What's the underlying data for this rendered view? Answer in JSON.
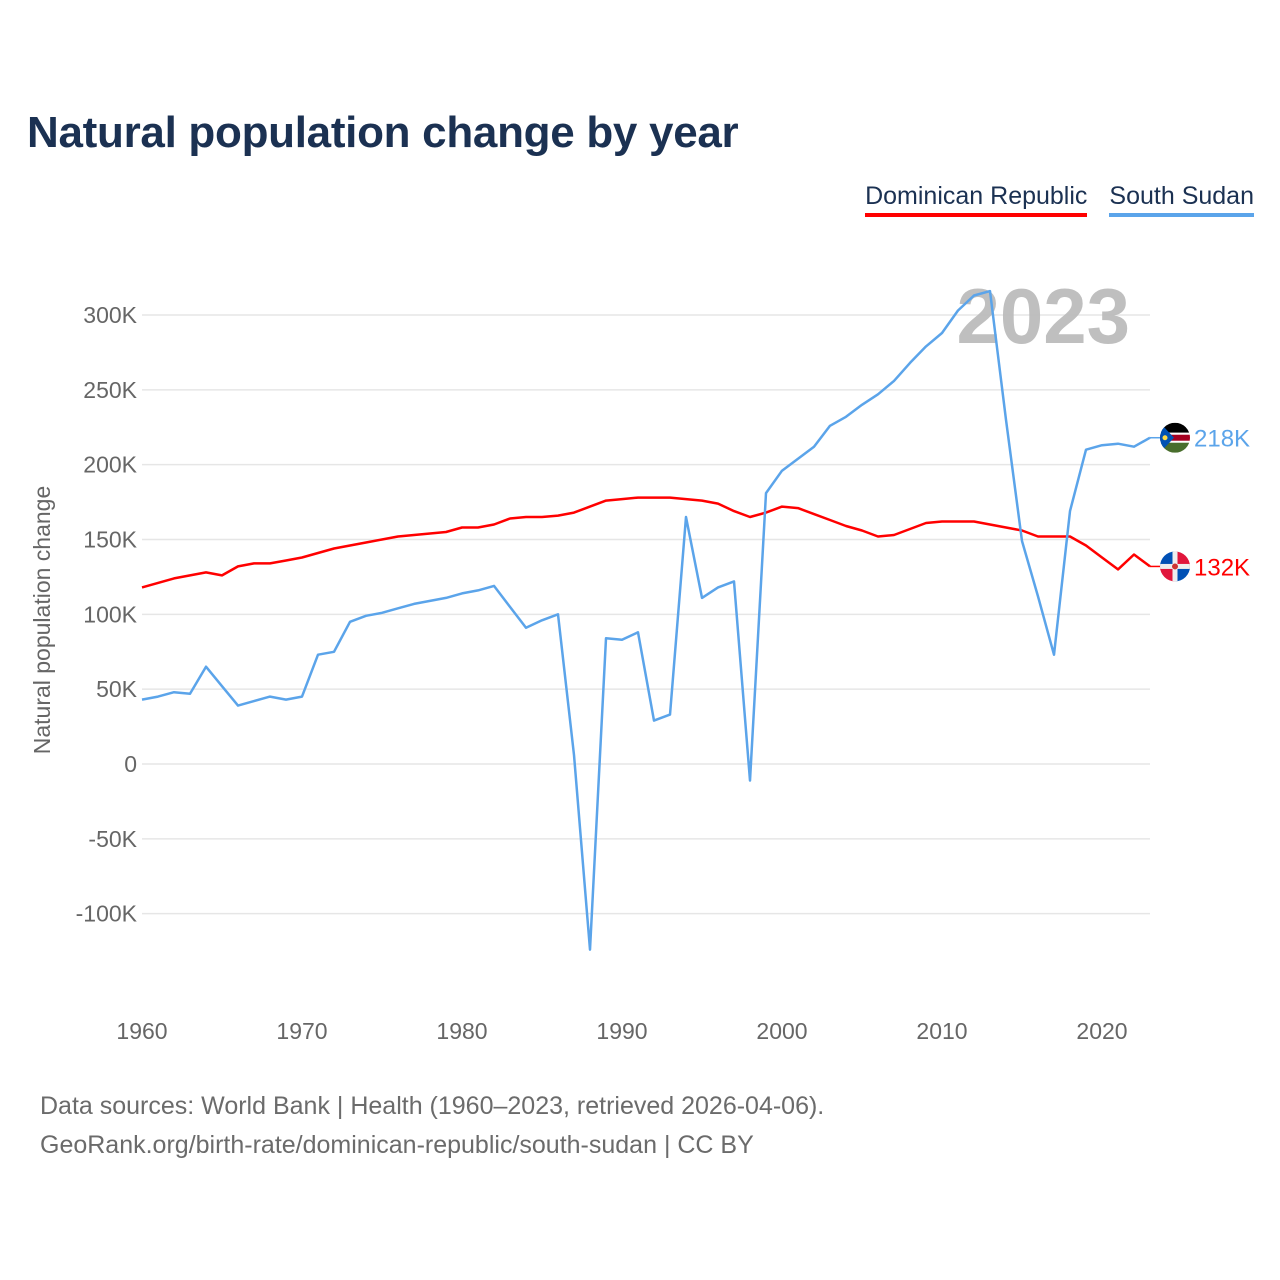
{
  "title": "Natural population change by year",
  "legend": [
    {
      "label": "Dominican Republic",
      "color": "#ff0000"
    },
    {
      "label": "South Sudan",
      "color": "#5ba4ea"
    }
  ],
  "footer": {
    "line1": "Data sources: World Bank | Health (1960–2023, retrieved 2026-04-06).",
    "line2": "GeoRank.org/birth-rate/dominican-republic/south-sudan | CC BY"
  },
  "chart_data": {
    "type": "line",
    "title": "Natural population change by year",
    "ylabel": "Natural population change",
    "xlabel": "",
    "year_watermark": "2023",
    "xlim": [
      1960,
      2023
    ],
    "ylim": [
      -125000,
      330000
    ],
    "grid": true,
    "legend_placement": "top-right",
    "x_ticks": [
      1960,
      1970,
      1980,
      1990,
      2000,
      2010,
      2020
    ],
    "x_tick_labels": [
      "1960",
      "1970",
      "1980",
      "1990",
      "2000",
      "2010",
      "2020"
    ],
    "y_ticks": [
      300000,
      250000,
      200000,
      150000,
      100000,
      50000,
      0,
      -50000,
      -100000
    ],
    "y_tick_labels": [
      "300K",
      "250K",
      "200K",
      "150K",
      "100K",
      "50K",
      "0",
      "-50K",
      "-100K"
    ],
    "x": [
      1960,
      1961,
      1962,
      1963,
      1964,
      1965,
      1966,
      1967,
      1968,
      1969,
      1970,
      1971,
      1972,
      1973,
      1974,
      1975,
      1976,
      1977,
      1978,
      1979,
      1980,
      1981,
      1982,
      1983,
      1984,
      1985,
      1986,
      1987,
      1988,
      1989,
      1990,
      1991,
      1992,
      1993,
      1994,
      1995,
      1996,
      1997,
      1998,
      1999,
      2000,
      2001,
      2002,
      2003,
      2004,
      2005,
      2006,
      2007,
      2008,
      2009,
      2010,
      2011,
      2012,
      2013,
      2014,
      2015,
      2016,
      2017,
      2018,
      2019,
      2020,
      2021,
      2022,
      2023
    ],
    "series": [
      {
        "name": "Dominican Republic",
        "color": "#ff0000",
        "end_label": "132K",
        "values": [
          118000,
          121000,
          124000,
          126000,
          128000,
          126000,
          132000,
          134000,
          134000,
          136000,
          138000,
          141000,
          144000,
          146000,
          148000,
          150000,
          152000,
          153000,
          154000,
          155000,
          158000,
          158000,
          160000,
          164000,
          165000,
          165000,
          166000,
          168000,
          172000,
          176000,
          177000,
          178000,
          178000,
          178000,
          177000,
          176000,
          174000,
          169000,
          165000,
          168000,
          172000,
          171000,
          167000,
          163000,
          159000,
          156000,
          152000,
          153000,
          157000,
          161000,
          162000,
          162000,
          162000,
          160000,
          158000,
          156000,
          152000,
          152000,
          152000,
          146000,
          138000,
          130000,
          140000,
          132000
        ]
      },
      {
        "name": "South Sudan",
        "color": "#5ba4ea",
        "end_label": "218K",
        "values": [
          43000,
          45000,
          48000,
          47000,
          65000,
          52000,
          39000,
          42000,
          45000,
          43000,
          45000,
          73000,
          75000,
          95000,
          99000,
          101000,
          104000,
          107000,
          109000,
          111000,
          114000,
          116000,
          119000,
          105000,
          91000,
          96000,
          100000,
          6000,
          -124000,
          84000,
          83000,
          88000,
          29000,
          33000,
          165000,
          111000,
          118000,
          122000,
          -11000,
          181000,
          196000,
          204000,
          212000,
          226000,
          232000,
          240000,
          247000,
          256000,
          268000,
          279000,
          288000,
          303000,
          313000,
          316000,
          230000,
          149000,
          112000,
          73000,
          169000,
          210000,
          213000,
          214000,
          212000,
          218000
        ]
      }
    ]
  }
}
